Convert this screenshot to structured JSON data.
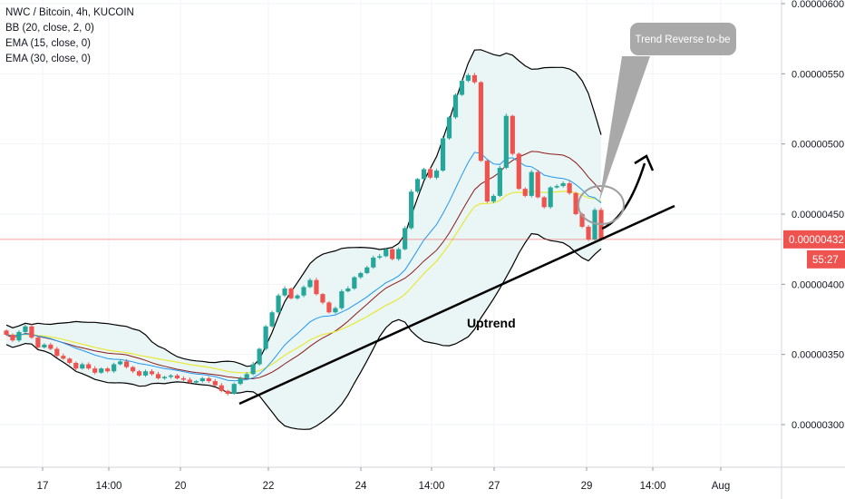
{
  "legend": {
    "symbol": "NWC / Bitcoin, 4h, KUCOIN",
    "bb": "BB (20, close, 2, 0)",
    "ema15": "EMA (15, close, 0)",
    "ema30": "EMA (30, close, 0)"
  },
  "price_scale": {
    "ticks": [
      "0.00000600",
      "0.00000550",
      "0.00000500",
      "0.00000450",
      "0.00000400",
      "0.00000350",
      "0.00000300"
    ],
    "current_price_label": "0.00000432",
    "countdown_label": "55:27"
  },
  "time_axis": {
    "ticks": [
      "17",
      "14:00",
      "20",
      "22",
      "24",
      "14:00",
      "27",
      "29",
      "14:00",
      "Aug"
    ]
  },
  "annotations": {
    "callout": "Trend Reverse to-be",
    "uptrend": "Uptrend"
  },
  "colors": {
    "up": "#26a69a",
    "down": "#ef5350",
    "bb_fill": "#e8f5f4",
    "bb_band": "#000000",
    "bb_basis": "#8b1a1a",
    "ema15": "#2196f3",
    "ema30": "#e8e836",
    "price_line": "#ef5350"
  },
  "chart_data": {
    "type": "candlestick",
    "title": "NWC / Bitcoin, 4h, KUCOIN",
    "ylim": [
      2.77e-06,
      6e-06
    ],
    "y_ticks": [
      3e-06,
      3.5e-06,
      4e-06,
      4.5e-06,
      5e-06,
      5.5e-06,
      6e-06
    ],
    "current_price": 4.32e-06,
    "series": [
      {
        "name": "BB (20, close, 2, 0)",
        "kind": "band"
      },
      {
        "name": "EMA (15, close, 0)",
        "kind": "line"
      },
      {
        "name": "EMA (30, close, 0)",
        "kind": "line"
      }
    ],
    "candle_closes": [
      3.64e-06,
      3.6e-06,
      3.66e-06,
      3.7e-06,
      3.62e-06,
      3.55e-06,
      3.57e-06,
      3.54e-06,
      3.49e-06,
      3.47e-06,
      3.44e-06,
      3.4e-06,
      3.43e-06,
      3.4e-06,
      3.37e-06,
      3.4e-06,
      3.38e-06,
      3.43e-06,
      3.45e-06,
      3.41e-06,
      3.38e-06,
      3.35e-06,
      3.38e-06,
      3.36e-06,
      3.33e-06,
      3.34e-06,
      3.35e-06,
      3.33e-06,
      3.32e-06,
      3.3e-06,
      3.31e-06,
      3.33e-06,
      3.31e-06,
      3.28e-06,
      3.24e-06,
      3.22e-06,
      3.29e-06,
      3.33e-06,
      3.36e-06,
      3.43e-06,
      3.54e-06,
      3.7e-06,
      3.8e-06,
      3.92e-06,
      3.97e-06,
      3.9e-06,
      3.92e-06,
      3.98e-06,
      4.03e-06,
      3.93e-06,
      3.87e-06,
      3.8e-06,
      3.83e-06,
      3.95e-06,
      3.97e-06,
      4.05e-06,
      4.08e-06,
      4.12e-06,
      4.19e-06,
      4.2e-06,
      4.25e-06,
      4.18e-06,
      4.25e-06,
      4.4e-06,
      4.66e-06,
      4.75e-06,
      4.82e-06,
      4.76e-06,
      4.81e-06,
      5.04e-06,
      5.19e-06,
      5.35e-06,
      5.45e-06,
      5.49e-06,
      5.44e-06,
      4.88e-06,
      4.59e-06,
      4.63e-06,
      4.83e-06,
      5.2e-06,
      4.93e-06,
      4.68e-06,
      4.63e-06,
      4.8e-06,
      4.62e-06,
      4.55e-06,
      4.69e-06,
      4.7e-06,
      4.72e-06,
      4.65e-06,
      4.5e-06,
      4.41e-06,
      4.32e-06,
      4.53e-06,
      4.32e-06
    ],
    "trendline_labels": {
      "annotation": "Trend Reverse to-be",
      "text": "Uptrend"
    }
  }
}
